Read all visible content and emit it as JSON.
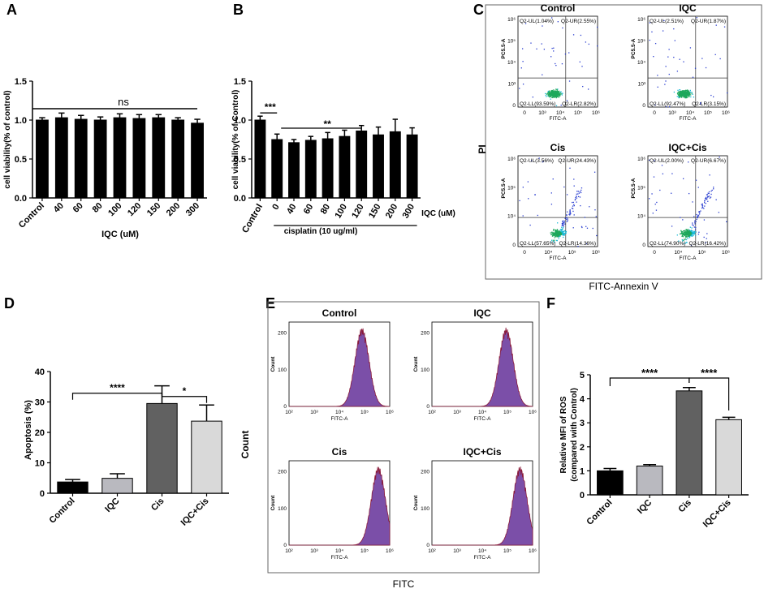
{
  "letters": {
    "a": "A",
    "b": "B",
    "c": "C",
    "d": "D",
    "e": "E",
    "f": "F"
  },
  "colors": {
    "bar_black": "#000000",
    "bar_dark": "#616161",
    "bar_light_gray": "#b9b9bf",
    "bar_lighter": "#d9d9d9",
    "hist_fill": "#7b4fa8",
    "hist_line": "#8a1a3a",
    "dot_blue": "#2b3fd0",
    "dot_green": "#1ea85c",
    "dot_cyan": "#17b8d6"
  },
  "chart_data": [
    {
      "id": "A",
      "type": "bar",
      "categories": [
        "Control",
        "40",
        "60",
        "80",
        "100",
        "120",
        "150",
        "200",
        "300"
      ],
      "values": [
        1.0,
        1.03,
        1.01,
        1.0,
        1.03,
        1.02,
        1.03,
        1.0,
        0.96
      ],
      "errors": [
        0.03,
        0.06,
        0.05,
        0.04,
        0.05,
        0.05,
        0.04,
        0.03,
        0.05
      ],
      "ylabel": "cell viability(% of control)",
      "xlabel": "IQC (uM)",
      "ylim": [
        0.0,
        1.5
      ],
      "yticks": [
        "0.0",
        "0.5",
        "1.0",
        "1.5"
      ],
      "significance": "ns"
    },
    {
      "id": "B",
      "type": "bar",
      "categories": [
        "Control",
        "0",
        "40",
        "60",
        "80",
        "100",
        "120",
        "150",
        "200",
        "300"
      ],
      "values": [
        1.0,
        0.75,
        0.71,
        0.74,
        0.76,
        0.79,
        0.86,
        0.81,
        0.85,
        0.81
      ],
      "errors": [
        0.05,
        0.07,
        0.04,
        0.05,
        0.08,
        0.08,
        0.07,
        0.1,
        0.16,
        0.09
      ],
      "ylabel": "cell viability(% of Control)",
      "xlabel_right": "IQC (uM)",
      "group_label": "cisplatin (10 ug/ml)",
      "ylim": [
        0.0,
        1.5
      ],
      "yticks": [
        "0.0",
        "0.5",
        "1.0",
        "1.5"
      ],
      "sig_control": "***",
      "sig_group": "**"
    },
    {
      "id": "C",
      "type": "scatter",
      "axis_label_y": "PI",
      "axis_label_x": "FITC-Annexin V",
      "plots": [
        {
          "title": "Control",
          "ul": "Q2-UL(1.04%)",
          "ur": "Q2-UR(2.55%)",
          "ll": "Q2-LL(93.59%)",
          "lr": "Q2-LR(2.82%)",
          "ylab": "PC5.5-A",
          "xlab": "FITC-A",
          "xticks": [
            "0",
            "10³",
            "10⁴",
            "10⁵",
            "10⁶"
          ],
          "yticks": [
            "10⁶",
            "10⁵",
            "10⁴",
            "10³",
            "0"
          ]
        },
        {
          "title": "IQC",
          "ul": "Q2-UL(2.51%)",
          "ur": "Q2-UR(1.87%)",
          "ll": "Q2-LL(92.47%)",
          "lr": "Q2-LR(3.15%)",
          "ylab": "PC5.5-A",
          "xlab": "FITC-A",
          "xticks": [
            "0",
            "10³",
            "10⁴",
            "10⁵",
            "10⁶"
          ],
          "yticks": [
            "10⁶",
            "10⁵",
            "10⁴",
            "10³",
            "0"
          ]
        },
        {
          "title": "Cis",
          "ul": "Q2-UL(3.56%)",
          "ur": "Q2-UR(24.43%)",
          "ll": "Q2-LL(57.65%)",
          "lr": "Q2-LR(14.36%)",
          "ylab": "PC5.5-A",
          "xlab": "FITC-A",
          "xticks": [
            "0",
            "10⁴",
            "10⁵",
            "10⁶"
          ],
          "yticks": [
            "10⁶",
            "10⁵",
            "10⁴",
            "0"
          ]
        },
        {
          "title": "IQC+Cis",
          "ul": "Q2-UL(2.00%)",
          "ur": "Q2-UR(6.67%)",
          "ll": "Q2-LL(74.90%)",
          "lr": "Q2-LR(16.42%)",
          "ylab": "PC5.5-A",
          "xlab": "FITC-A",
          "xticks": [
            "0",
            "10⁴",
            "10⁵",
            "10⁶"
          ],
          "yticks": [
            "10⁶",
            "10⁵",
            "10⁴",
            "0"
          ]
        }
      ]
    },
    {
      "id": "D",
      "type": "bar",
      "categories": [
        "Control",
        "IQC",
        "Cis",
        "IQC+Cis"
      ],
      "values": [
        3.7,
        4.9,
        29.5,
        23.7
      ],
      "errors": [
        0.8,
        1.5,
        5.8,
        5.3
      ],
      "ylabel": "Apoptosis (%)",
      "ylim": [
        0,
        40
      ],
      "yticks": [
        "0",
        "10",
        "20",
        "30",
        "40"
      ],
      "sig1": "****",
      "sig2": "*"
    },
    {
      "id": "E",
      "type": "area",
      "axis_label_y": "Count",
      "axis_label_x": "FITC",
      "plots": [
        {
          "title": "Control",
          "peak_log": 4.9,
          "ylab": "Count",
          "xlab": "FITC-A",
          "yticks": [
            "200",
            "100",
            "0"
          ],
          "xticks": [
            "10²",
            "10³",
            "10⁴",
            "10⁵",
            "10⁶"
          ]
        },
        {
          "title": "IQC",
          "peak_log": 4.95,
          "ylab": "Count",
          "xlab": "FITC-A",
          "yticks": [
            "200",
            "100",
            "0"
          ],
          "xticks": [
            "10²",
            "10³",
            "10⁴",
            "10⁵",
            "10⁶"
          ]
        },
        {
          "title": "Cis",
          "peak_log": 5.55,
          "ylab": "Count",
          "xlab": "FITC-A",
          "yticks": [
            "200",
            "100",
            "0"
          ],
          "xticks": [
            "10²",
            "10³",
            "10⁴",
            "10⁵",
            "10⁶"
          ]
        },
        {
          "title": "IQC+Cis",
          "peak_log": 5.5,
          "ylab": "Count",
          "xlab": "FITC-A",
          "yticks": [
            "200",
            "100",
            "0"
          ],
          "xticks": [
            "10²",
            "10³",
            "10⁴",
            "10⁵",
            "10⁶"
          ]
        }
      ]
    },
    {
      "id": "F",
      "type": "bar",
      "categories": [
        "Control",
        "IQC",
        "Cis",
        "IQC+Cis"
      ],
      "values": [
        1.0,
        1.2,
        4.33,
        3.13
      ],
      "errors": [
        0.1,
        0.06,
        0.14,
        0.1
      ],
      "ylabel": "Relative MFI of ROS",
      "ylabel2": "(compared with Control)",
      "ylim": [
        0,
        5
      ],
      "yticks": [
        "0",
        "1",
        "2",
        "3",
        "4",
        "5"
      ],
      "sig1": "****",
      "sig2": "****"
    }
  ]
}
